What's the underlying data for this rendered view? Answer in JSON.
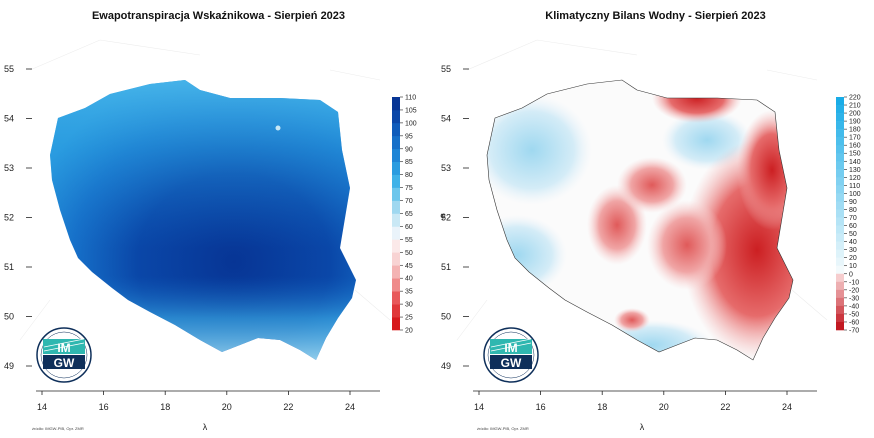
{
  "left_map": {
    "title": "Ewapotranspiracja Wskaźnikowa - Sierpień 2023",
    "x_axis_label": "λ",
    "y_axis_label": "",
    "x_ticks": [
      "14",
      "16",
      "18",
      "20",
      "22",
      "24"
    ],
    "y_ticks": [
      "49",
      "50",
      "51",
      "52",
      "53",
      "54",
      "55"
    ],
    "legend_values": [
      "20",
      "25",
      "30",
      "35",
      "40",
      "45",
      "50",
      "55",
      "60",
      "65",
      "70",
      "75",
      "80",
      "85",
      "90",
      "95",
      "100",
      "105",
      "110"
    ],
    "legend_colors": [
      "#d7191c",
      "#e0383a",
      "#e8585a",
      "#ef8a8a",
      "#f4b3b3",
      "#f8d3d3",
      "#fbe9e9",
      "#eaf3fa",
      "#c9e8f5",
      "#9fd8f0",
      "#6cc6ec",
      "#3fb2e8",
      "#2a9ce0",
      "#1e85d6",
      "#1670c9",
      "#0f5cbb",
      "#0a47a8",
      "#073595",
      "#042280"
    ],
    "credit": "źródło: IMGW-PIB, Opr. ZMR"
  },
  "right_map": {
    "title": "Klimatyczny Bilans Wodny - Sierpień 2023",
    "x_axis_label": "λ",
    "y_axis_label": "φ",
    "x_ticks": [
      "14",
      "16",
      "18",
      "20",
      "22",
      "24"
    ],
    "y_ticks": [
      "49",
      "50",
      "51",
      "52",
      "53",
      "54",
      "55"
    ],
    "legend_values": [
      "220",
      "210",
      "200",
      "190",
      "180",
      "170",
      "160",
      "150",
      "140",
      "130",
      "120",
      "110",
      "100",
      "90",
      "80",
      "70",
      "60",
      "50",
      "40",
      "30",
      "20",
      "10",
      "0",
      "-10",
      "-20",
      "-30",
      "-40",
      "-50",
      "-60",
      "-70"
    ],
    "credit": "źródło: IMGW-PIB, Opr. ZMR"
  },
  "logo": {
    "line1": "IM",
    "line2": "GW"
  },
  "colors": {
    "et_base": "#1566c6",
    "et_dark": "#073595",
    "et_light": "#49b6ea",
    "kbw_neutral": "#fbfbfb",
    "kbw_wet": "#c9e8f5",
    "kbw_dry": "#e66b6b",
    "kbw_very_dry": "#cc1f22",
    "logo_navy": "#0e2f5a",
    "logo_teal": "#2fb7b0"
  }
}
